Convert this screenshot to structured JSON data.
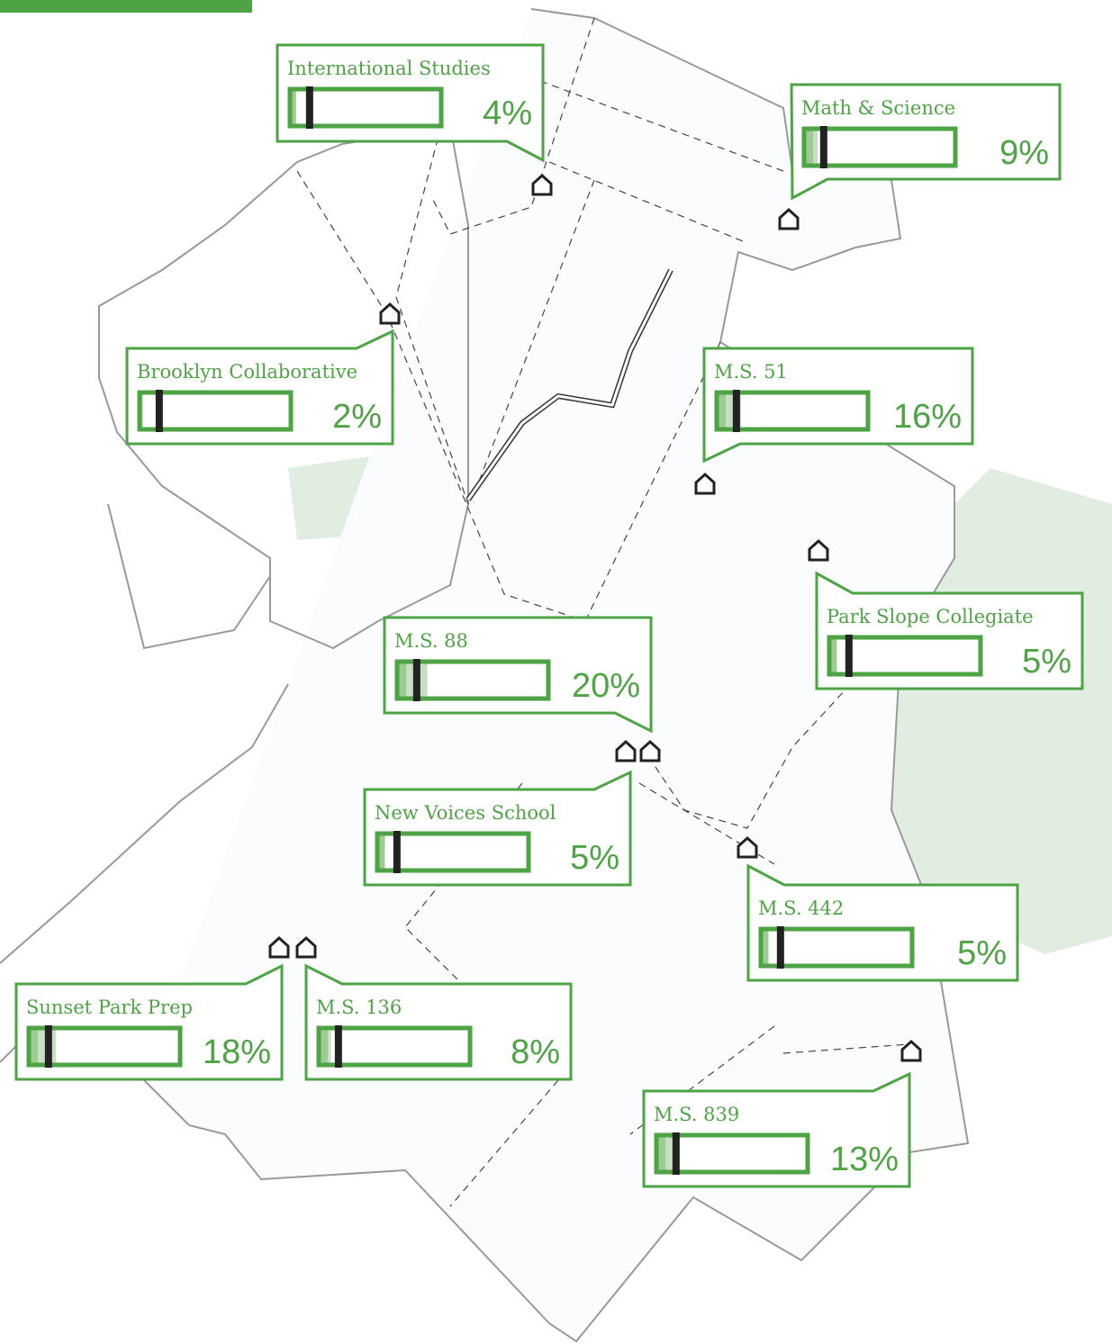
{
  "schools": [
    {
      "name": "International Studies",
      "value": 4,
      "value_label": "4%"
    },
    {
      "name": "Math & Science",
      "value": 9,
      "value_label": "9%"
    },
    {
      "name": "Brooklyn Collaborative",
      "value": 2,
      "value_label": "2%"
    },
    {
      "name": "M.S. 51",
      "value": 16,
      "value_label": "16%"
    },
    {
      "name": "Park Slope Collegiate",
      "value": 5,
      "value_label": "5%"
    },
    {
      "name": "M.S. 88",
      "value": 20,
      "value_label": "20%"
    },
    {
      "name": "New Voices School",
      "value": 5,
      "value_label": "5%"
    },
    {
      "name": "M.S. 442",
      "value": 5,
      "value_label": "5%"
    },
    {
      "name": "Sunset Park Prep",
      "value": 18,
      "value_label": "18%"
    },
    {
      "name": "M.S. 136",
      "value": 8,
      "value_label": "8%"
    },
    {
      "name": "M.S. 839",
      "value": 13,
      "value_label": "13%"
    }
  ],
  "benchmark": 13,
  "scale_max": 100
}
